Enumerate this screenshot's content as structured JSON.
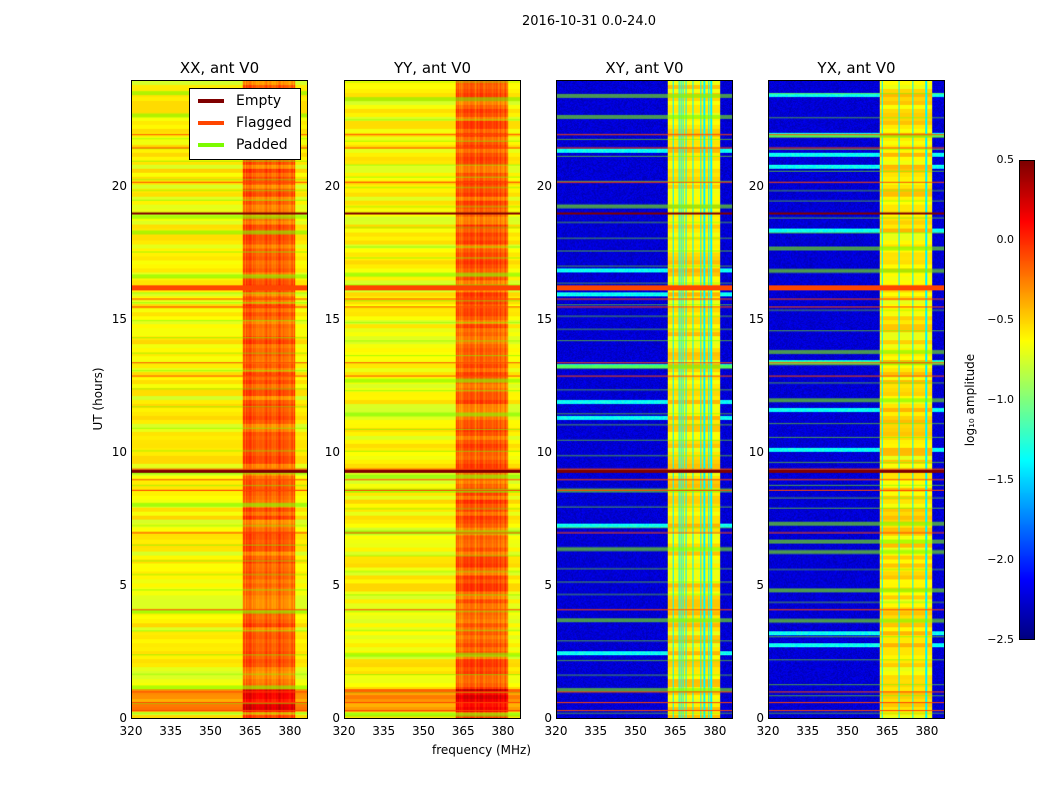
{
  "chart_data": {
    "type": "heatmap",
    "title": "2016-10-31 0.0-24.0",
    "xlabel": "frequency (MHz)",
    "ylabel": "UT (hours)",
    "xlim": [
      320,
      386.8
    ],
    "ylim": [
      0,
      24
    ],
    "xticks": [
      "320",
      "335",
      "350",
      "365",
      "380"
    ],
    "xtick_values": [
      320,
      335,
      350,
      365,
      380
    ],
    "yticks": [
      "0",
      "5",
      "10",
      "15",
      "20"
    ],
    "ytick_values": [
      0,
      5,
      10,
      15,
      20
    ],
    "panels": [
      {
        "title": "XX, ant V0",
        "kind": "parallel"
      },
      {
        "title": "YY, ant V0",
        "kind": "parallel"
      },
      {
        "title": "XY, ant V0",
        "kind": "cross"
      },
      {
        "title": "YX, ant V0",
        "kind": "cross"
      }
    ],
    "legend": {
      "placement": "top-right of first panel",
      "entries": [
        {
          "label": "Empty",
          "color": "#800000"
        },
        {
          "label": "Flagged",
          "color": "#ff4500"
        },
        {
          "label": "Padded",
          "color": "#7cfc00"
        }
      ]
    },
    "empty_times": [
      9.35,
      19.05
    ],
    "flagged_times": [
      0.3,
      0.6,
      1.0,
      4.1,
      7.0,
      8.6,
      9.0,
      9.4,
      12.9,
      13.4,
      15.5,
      15.8,
      16.3,
      20.2,
      21.5,
      22.0
    ],
    "colorbar": {
      "label": "log₁₀ amplitude",
      "clim": [
        -2.5,
        0.5
      ],
      "ticks": [
        "0.5",
        "0.0",
        "−0.5",
        "−1.0",
        "−1.5",
        "−2.0",
        "−2.5"
      ],
      "tick_values": [
        0.5,
        0,
        -0.5,
        -1,
        -1.5,
        -2,
        -2.5
      ],
      "colormap": "jet"
    }
  }
}
